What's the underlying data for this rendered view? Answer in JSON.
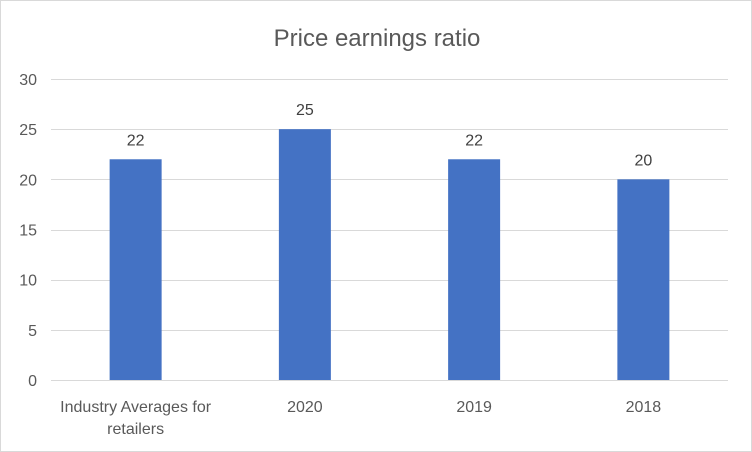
{
  "chart_data": {
    "type": "bar",
    "title": "Price earnings ratio",
    "categories": [
      [
        "Industry Averages for",
        "retailers"
      ],
      [
        "2020"
      ],
      [
        "2019"
      ],
      [
        "2018"
      ]
    ],
    "values": [
      22,
      25,
      22,
      20
    ],
    "data_labels": [
      "22",
      "25",
      "22",
      "20"
    ],
    "y_ticks": [
      "0",
      "5",
      "10",
      "15",
      "20",
      "25",
      "30"
    ],
    "ylim": [
      0,
      30
    ],
    "xlabel": "",
    "ylabel": "",
    "grid": true,
    "legend": "none",
    "bar_color": "#4472c4",
    "gridline_color": "#d9d9d9"
  }
}
